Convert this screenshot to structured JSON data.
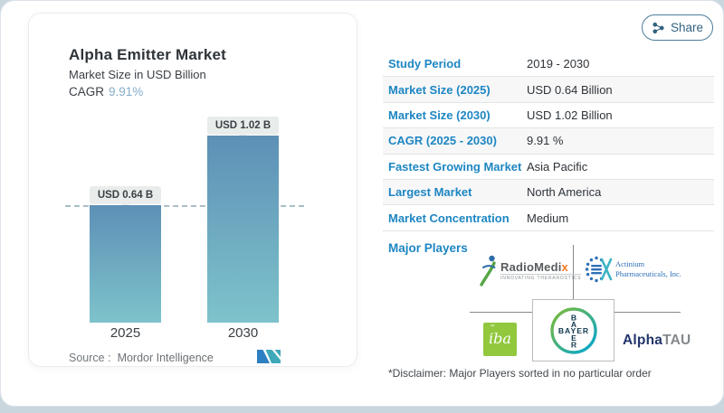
{
  "page": {
    "share_label": "Share"
  },
  "chart": {
    "title": "Alpha Emitter Market",
    "subtitle": "Market Size in USD Billion",
    "cagr_label": "CAGR",
    "cagr_value": "9.91%",
    "source_label": "Source :",
    "source_value": "Mordor Intelligence",
    "bars": [
      {
        "year": "2025",
        "chip": "USD 0.64 B"
      },
      {
        "year": "2030",
        "chip": "USD 1.02 B"
      }
    ]
  },
  "chart_data": {
    "type": "bar",
    "categories": [
      "2025",
      "2030"
    ],
    "values": [
      0.64,
      1.02
    ],
    "title": "Alpha Emitter Market",
    "subtitle": "Market Size in USD Billion",
    "unit": "USD Billion",
    "bar_labels": [
      "USD 0.64 B",
      "USD 1.02 B"
    ],
    "ylim": [
      0,
      1.02
    ],
    "grid": false,
    "legend": "none",
    "annotations": "dashed reference line at 2025 value (0.64)"
  },
  "table": {
    "rows": [
      {
        "label": "Study Period",
        "value": "2019 - 2030"
      },
      {
        "label": "Market Size (2025)",
        "value": "USD 0.64 Billion"
      },
      {
        "label": "Market Size (2030)",
        "value": "USD 1.02 Billion"
      },
      {
        "label": "CAGR (2025 - 2030)",
        "value": "9.91 %"
      },
      {
        "label": "Fastest Growing Market",
        "value": "Asia Pacific"
      },
      {
        "label": "Largest Market",
        "value": "North America"
      },
      {
        "label": "Market Concentration",
        "value": "Medium"
      }
    ]
  },
  "players": {
    "title": "Major Players",
    "disclaimer": "*Disclaimer: Major Players sorted in no particular order",
    "radiomedix": {
      "name": "RadioMedi",
      "name_x": "x",
      "tagline": "INNOVATING THERANOSTICS"
    },
    "actinium": {
      "line1": "Actinium",
      "line2": "Pharmaceuticals, Inc."
    },
    "iba": {
      "text": "iba"
    },
    "bayer": {
      "h": "BAYER",
      "v1": "B",
      "v2": "A",
      "v3": "E",
      "v4": "R"
    },
    "alphatau": {
      "part1": "Alpha",
      "part2": "TAU"
    }
  },
  "colors": {
    "label_blue": "#1d86c2",
    "share_blue": "#33627f",
    "bar_gradient_top": "#5d90b6",
    "bar_gradient_bottom": "#7ec3cb",
    "cagr_value_blue": "#86acca",
    "iba_green": "#92c83e"
  }
}
